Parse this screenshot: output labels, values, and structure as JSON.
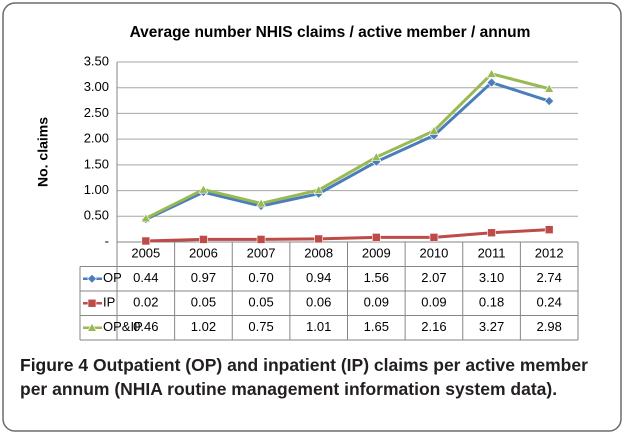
{
  "chart_data": {
    "type": "line",
    "title": "Average number NHIS claims / active member / annum",
    "y_label": "No. claims",
    "categories": [
      "2005",
      "2006",
      "2007",
      "2008",
      "2009",
      "2010",
      "2011",
      "2012"
    ],
    "series": [
      {
        "name": "OP",
        "color": "#4a7ebb",
        "marker": "diamond",
        "values": [
          0.44,
          0.97,
          0.7,
          0.94,
          1.56,
          2.07,
          3.1,
          2.74
        ],
        "value_labels": [
          "0.44",
          "0.97",
          "0.70",
          "0.94",
          "1.56",
          "2.07",
          "3.10",
          "2.74"
        ]
      },
      {
        "name": "IP",
        "color": "#be4b48",
        "marker": "square",
        "values": [
          0.02,
          0.05,
          0.05,
          0.06,
          0.09,
          0.09,
          0.18,
          0.24
        ],
        "value_labels": [
          "0.02",
          "0.05",
          "0.05",
          "0.06",
          "0.09",
          "0.09",
          "0.18",
          "0.24"
        ]
      },
      {
        "name": "OP&IP",
        "color": "#98b954",
        "marker": "triangle",
        "values": [
          0.46,
          1.02,
          0.75,
          1.01,
          1.65,
          2.16,
          3.27,
          2.98
        ],
        "value_labels": [
          "0.46",
          "1.02",
          "0.75",
          "1.01",
          "1.65",
          "2.16",
          "3.27",
          "2.98"
        ]
      }
    ],
    "ylim": [
      0,
      3.5
    ],
    "yticks": [
      {
        "value": 0,
        "label": "-"
      },
      {
        "value": 0.5,
        "label": "0.50"
      },
      {
        "value": 1,
        "label": "1.00"
      },
      {
        "value": 1.5,
        "label": "1.50"
      },
      {
        "value": 2,
        "label": "2.00"
      },
      {
        "value": 2.5,
        "label": "2.50"
      },
      {
        "value": 3,
        "label": "3.00"
      },
      {
        "value": 3.5,
        "label": "3.50"
      }
    ],
    "grid": true,
    "caption": {
      "label": "Figure 4",
      "text": "Outpatient (OP) and inpatient (IP) claims per active member per annum (NHIA routine management information system data)."
    }
  }
}
